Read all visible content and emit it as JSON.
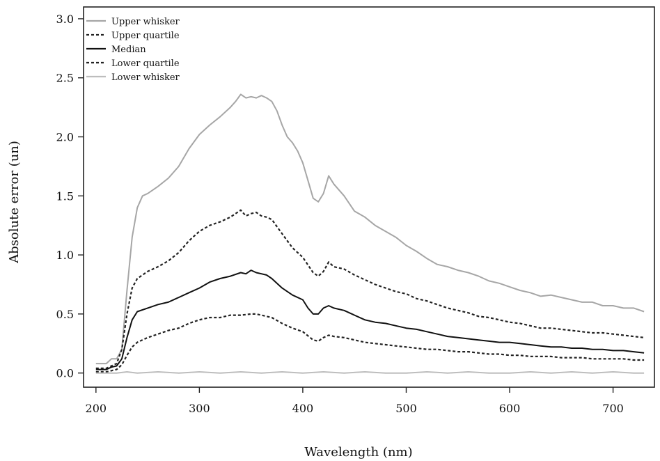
{
  "chart_data": {
    "type": "line",
    "title": "",
    "xlabel": "Wavelength (nm)",
    "ylabel": "Absolute error (un)",
    "xlim": [
      188,
      740
    ],
    "ylim": [
      -0.12,
      3.1
    ],
    "xticks": [
      200,
      300,
      400,
      500,
      600,
      700
    ],
    "yticks": [
      0.0,
      0.5,
      1.0,
      1.5,
      2.0,
      2.5,
      3.0
    ],
    "xtick_labels": [
      "200",
      "300",
      "400",
      "500",
      "600",
      "700"
    ],
    "ytick_labels": [
      "0.0",
      "0.5",
      "1.0",
      "1.5",
      "2.0",
      "2.5",
      "3.0"
    ],
    "grid": false,
    "legend_position": "top-left",
    "series": [
      {
        "name": "Upper whisker",
        "color": "#a6a6a6",
        "style": "solid",
        "points": [
          [
            200,
            0.08
          ],
          [
            210,
            0.08
          ],
          [
            215,
            0.12
          ],
          [
            220,
            0.12
          ],
          [
            225,
            0.2
          ],
          [
            230,
            0.7
          ],
          [
            235,
            1.15
          ],
          [
            240,
            1.4
          ],
          [
            245,
            1.5
          ],
          [
            250,
            1.52
          ],
          [
            260,
            1.58
          ],
          [
            270,
            1.65
          ],
          [
            280,
            1.75
          ],
          [
            290,
            1.9
          ],
          [
            300,
            2.02
          ],
          [
            310,
            2.1
          ],
          [
            320,
            2.17
          ],
          [
            330,
            2.25
          ],
          [
            335,
            2.3
          ],
          [
            340,
            2.36
          ],
          [
            345,
            2.33
          ],
          [
            350,
            2.34
          ],
          [
            355,
            2.33
          ],
          [
            360,
            2.35
          ],
          [
            365,
            2.33
          ],
          [
            370,
            2.3
          ],
          [
            375,
            2.22
          ],
          [
            380,
            2.1
          ],
          [
            385,
            2.0
          ],
          [
            390,
            1.95
          ],
          [
            395,
            1.88
          ],
          [
            400,
            1.78
          ],
          [
            405,
            1.63
          ],
          [
            410,
            1.48
          ],
          [
            415,
            1.45
          ],
          [
            420,
            1.52
          ],
          [
            425,
            1.67
          ],
          [
            430,
            1.6
          ],
          [
            435,
            1.55
          ],
          [
            440,
            1.5
          ],
          [
            450,
            1.37
          ],
          [
            460,
            1.32
          ],
          [
            470,
            1.25
          ],
          [
            480,
            1.2
          ],
          [
            490,
            1.15
          ],
          [
            500,
            1.08
          ],
          [
            510,
            1.03
          ],
          [
            520,
            0.97
          ],
          [
            530,
            0.92
          ],
          [
            540,
            0.9
          ],
          [
            550,
            0.87
          ],
          [
            560,
            0.85
          ],
          [
            570,
            0.82
          ],
          [
            580,
            0.78
          ],
          [
            590,
            0.76
          ],
          [
            600,
            0.73
          ],
          [
            610,
            0.7
          ],
          [
            620,
            0.68
          ],
          [
            630,
            0.65
          ],
          [
            640,
            0.66
          ],
          [
            650,
            0.64
          ],
          [
            660,
            0.62
          ],
          [
            670,
            0.6
          ],
          [
            680,
            0.6
          ],
          [
            690,
            0.57
          ],
          [
            700,
            0.57
          ],
          [
            710,
            0.55
          ],
          [
            720,
            0.55
          ],
          [
            730,
            0.52
          ]
        ]
      },
      {
        "name": "Upper quartile",
        "color": "#222222",
        "style": "dotted",
        "points": [
          [
            200,
            0.04
          ],
          [
            210,
            0.04
          ],
          [
            215,
            0.06
          ],
          [
            220,
            0.08
          ],
          [
            225,
            0.2
          ],
          [
            230,
            0.5
          ],
          [
            235,
            0.72
          ],
          [
            240,
            0.8
          ],
          [
            250,
            0.86
          ],
          [
            260,
            0.9
          ],
          [
            270,
            0.95
          ],
          [
            280,
            1.02
          ],
          [
            290,
            1.12
          ],
          [
            300,
            1.2
          ],
          [
            310,
            1.25
          ],
          [
            320,
            1.28
          ],
          [
            330,
            1.32
          ],
          [
            340,
            1.38
          ],
          [
            345,
            1.33
          ],
          [
            350,
            1.35
          ],
          [
            355,
            1.36
          ],
          [
            360,
            1.33
          ],
          [
            365,
            1.32
          ],
          [
            370,
            1.3
          ],
          [
            380,
            1.18
          ],
          [
            390,
            1.06
          ],
          [
            400,
            0.98
          ],
          [
            410,
            0.85
          ],
          [
            415,
            0.82
          ],
          [
            420,
            0.86
          ],
          [
            425,
            0.94
          ],
          [
            430,
            0.9
          ],
          [
            440,
            0.88
          ],
          [
            450,
            0.83
          ],
          [
            460,
            0.79
          ],
          [
            470,
            0.75
          ],
          [
            480,
            0.72
          ],
          [
            490,
            0.69
          ],
          [
            500,
            0.67
          ],
          [
            510,
            0.63
          ],
          [
            520,
            0.61
          ],
          [
            530,
            0.58
          ],
          [
            540,
            0.55
          ],
          [
            550,
            0.53
          ],
          [
            560,
            0.51
          ],
          [
            570,
            0.48
          ],
          [
            580,
            0.47
          ],
          [
            590,
            0.45
          ],
          [
            600,
            0.43
          ],
          [
            610,
            0.42
          ],
          [
            620,
            0.4
          ],
          [
            630,
            0.38
          ],
          [
            640,
            0.38
          ],
          [
            650,
            0.37
          ],
          [
            660,
            0.36
          ],
          [
            670,
            0.35
          ],
          [
            680,
            0.34
          ],
          [
            690,
            0.34
          ],
          [
            700,
            0.33
          ],
          [
            710,
            0.32
          ],
          [
            720,
            0.31
          ],
          [
            730,
            0.3
          ]
        ]
      },
      {
        "name": "Median",
        "color": "#111111",
        "style": "solid",
        "points": [
          [
            200,
            0.03
          ],
          [
            210,
            0.03
          ],
          [
            215,
            0.05
          ],
          [
            220,
            0.06
          ],
          [
            225,
            0.12
          ],
          [
            230,
            0.3
          ],
          [
            235,
            0.45
          ],
          [
            240,
            0.52
          ],
          [
            250,
            0.55
          ],
          [
            260,
            0.58
          ],
          [
            270,
            0.6
          ],
          [
            280,
            0.64
          ],
          [
            290,
            0.68
          ],
          [
            300,
            0.72
          ],
          [
            310,
            0.77
          ],
          [
            320,
            0.8
          ],
          [
            330,
            0.82
          ],
          [
            340,
            0.85
          ],
          [
            345,
            0.84
          ],
          [
            350,
            0.87
          ],
          [
            355,
            0.85
          ],
          [
            360,
            0.84
          ],
          [
            365,
            0.83
          ],
          [
            370,
            0.8
          ],
          [
            380,
            0.72
          ],
          [
            390,
            0.66
          ],
          [
            400,
            0.62
          ],
          [
            405,
            0.55
          ],
          [
            410,
            0.5
          ],
          [
            415,
            0.5
          ],
          [
            420,
            0.55
          ],
          [
            425,
            0.57
          ],
          [
            430,
            0.55
          ],
          [
            440,
            0.53
          ],
          [
            450,
            0.49
          ],
          [
            460,
            0.45
          ],
          [
            470,
            0.43
          ],
          [
            480,
            0.42
          ],
          [
            490,
            0.4
          ],
          [
            500,
            0.38
          ],
          [
            510,
            0.37
          ],
          [
            520,
            0.35
          ],
          [
            530,
            0.33
          ],
          [
            540,
            0.31
          ],
          [
            550,
            0.3
          ],
          [
            560,
            0.29
          ],
          [
            570,
            0.28
          ],
          [
            580,
            0.27
          ],
          [
            590,
            0.26
          ],
          [
            600,
            0.26
          ],
          [
            610,
            0.25
          ],
          [
            620,
            0.24
          ],
          [
            630,
            0.23
          ],
          [
            640,
            0.22
          ],
          [
            650,
            0.22
          ],
          [
            660,
            0.21
          ],
          [
            670,
            0.21
          ],
          [
            680,
            0.2
          ],
          [
            690,
            0.2
          ],
          [
            700,
            0.19
          ],
          [
            710,
            0.19
          ],
          [
            720,
            0.18
          ],
          [
            730,
            0.17
          ]
        ]
      },
      {
        "name": "Lower quartile",
        "color": "#222222",
        "style": "dotted",
        "points": [
          [
            200,
            0.01
          ],
          [
            210,
            0.01
          ],
          [
            215,
            0.02
          ],
          [
            220,
            0.03
          ],
          [
            225,
            0.07
          ],
          [
            230,
            0.15
          ],
          [
            235,
            0.22
          ],
          [
            240,
            0.26
          ],
          [
            250,
            0.3
          ],
          [
            260,
            0.33
          ],
          [
            270,
            0.36
          ],
          [
            280,
            0.38
          ],
          [
            290,
            0.42
          ],
          [
            300,
            0.45
          ],
          [
            310,
            0.47
          ],
          [
            320,
            0.47
          ],
          [
            330,
            0.49
          ],
          [
            340,
            0.49
          ],
          [
            350,
            0.5
          ],
          [
            355,
            0.5
          ],
          [
            360,
            0.49
          ],
          [
            370,
            0.47
          ],
          [
            380,
            0.42
          ],
          [
            390,
            0.38
          ],
          [
            400,
            0.35
          ],
          [
            410,
            0.28
          ],
          [
            415,
            0.27
          ],
          [
            420,
            0.3
          ],
          [
            425,
            0.32
          ],
          [
            430,
            0.31
          ],
          [
            440,
            0.3
          ],
          [
            450,
            0.28
          ],
          [
            460,
            0.26
          ],
          [
            470,
            0.25
          ],
          [
            480,
            0.24
          ],
          [
            490,
            0.23
          ],
          [
            500,
            0.22
          ],
          [
            510,
            0.21
          ],
          [
            520,
            0.2
          ],
          [
            530,
            0.2
          ],
          [
            540,
            0.19
          ],
          [
            550,
            0.18
          ],
          [
            560,
            0.18
          ],
          [
            570,
            0.17
          ],
          [
            580,
            0.16
          ],
          [
            590,
            0.16
          ],
          [
            600,
            0.15
          ],
          [
            610,
            0.15
          ],
          [
            620,
            0.14
          ],
          [
            630,
            0.14
          ],
          [
            640,
            0.14
          ],
          [
            650,
            0.13
          ],
          [
            660,
            0.13
          ],
          [
            670,
            0.13
          ],
          [
            680,
            0.12
          ],
          [
            690,
            0.12
          ],
          [
            700,
            0.12
          ],
          [
            710,
            0.12
          ],
          [
            720,
            0.11
          ],
          [
            730,
            0.11
          ]
        ]
      },
      {
        "name": "Lower whisker",
        "color": "#bdbdbd",
        "style": "solid",
        "points": [
          [
            200,
            0.0
          ],
          [
            220,
            0.0
          ],
          [
            230,
            0.01
          ],
          [
            240,
            0.0
          ],
          [
            260,
            0.01
          ],
          [
            280,
            0.0
          ],
          [
            300,
            0.01
          ],
          [
            320,
            0.0
          ],
          [
            340,
            0.01
          ],
          [
            360,
            0.0
          ],
          [
            380,
            0.01
          ],
          [
            400,
            0.0
          ],
          [
            420,
            0.01
          ],
          [
            440,
            0.0
          ],
          [
            460,
            0.01
          ],
          [
            480,
            0.0
          ],
          [
            500,
            0.0
          ],
          [
            520,
            0.01
          ],
          [
            540,
            0.0
          ],
          [
            560,
            0.01
          ],
          [
            580,
            0.0
          ],
          [
            600,
            0.0
          ],
          [
            620,
            0.01
          ],
          [
            640,
            0.0
          ],
          [
            660,
            0.01
          ],
          [
            680,
            0.0
          ],
          [
            700,
            0.01
          ],
          [
            720,
            0.0
          ],
          [
            730,
            0.0
          ]
        ]
      }
    ]
  }
}
